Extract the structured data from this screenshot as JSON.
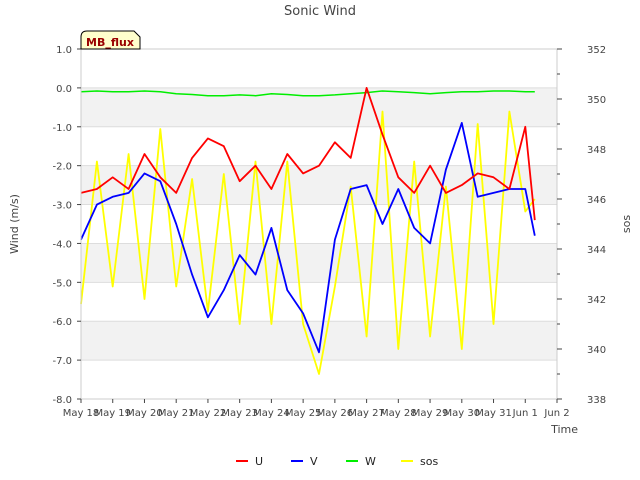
{
  "chart_data": {
    "type": "line",
    "title": "Sonic Wind",
    "xlabel": "Time",
    "ylabel": "Wind (m/s)",
    "y2label": "sos",
    "site_label": "MB_flux",
    "x_tick_labels": [
      "May 18",
      "May 19",
      "May 20",
      "May 21",
      "May 22",
      "May 23",
      "May 24",
      "May 25",
      "May 26",
      "May 27",
      "May 28",
      "May 29",
      "May 30",
      "May 31",
      "Jun 1",
      "Jun 2"
    ],
    "x_range_days": [
      0,
      15
    ],
    "ylim": [
      -8.0,
      1.0
    ],
    "y_ticks": [
      1.0,
      0.0,
      -1.0,
      -2.0,
      -3.0,
      -4.0,
      -5.0,
      -6.0,
      -7.0,
      -8.0
    ],
    "y_tick_labels": [
      "1.0",
      "0.0",
      "-1.0",
      "-2.0",
      "-3.0",
      "-4.0",
      "-5.0",
      "-6.0",
      "-7.0",
      "-8.0"
    ],
    "y2lim": [
      338,
      352
    ],
    "y2_ticks": [
      338,
      340,
      342,
      344,
      346,
      348,
      350,
      352
    ],
    "y2_tick_labels": [
      "338",
      "340",
      "342",
      "344",
      "346",
      "348",
      "350",
      "352"
    ],
    "legend_position": "bottom-center",
    "series": [
      {
        "name": "U",
        "color": "#ff0000",
        "axis": "left",
        "x": [
          0,
          0.5,
          1,
          1.5,
          2,
          2.5,
          3,
          3.5,
          4,
          4.5,
          5,
          5.5,
          6,
          6.5,
          7,
          7.5,
          8,
          8.5,
          9,
          9.5,
          10,
          10.5,
          11,
          11.5,
          12,
          12.5,
          13,
          13.5,
          14,
          14.3
        ],
        "values": [
          -2.7,
          -2.6,
          -2.3,
          -2.6,
          -1.7,
          -2.3,
          -2.7,
          -1.8,
          -1.3,
          -1.5,
          -2.4,
          -2.0,
          -2.6,
          -1.7,
          -2.2,
          -2.0,
          -1.4,
          -1.8,
          0.0,
          -1.2,
          -2.3,
          -2.7,
          -2.0,
          -2.7,
          -2.5,
          -2.2,
          -2.3,
          -2.6,
          -1.0,
          -3.4
        ]
      },
      {
        "name": "V",
        "color": "#0000ff",
        "axis": "left",
        "x": [
          0,
          0.5,
          1,
          1.5,
          2,
          2.5,
          3,
          3.5,
          4,
          4.5,
          5,
          5.5,
          6,
          6.5,
          7,
          7.5,
          8,
          8.5,
          9,
          9.5,
          10,
          10.5,
          11,
          11.5,
          12,
          12.5,
          13,
          13.5,
          14,
          14.3
        ],
        "values": [
          -3.9,
          -3.0,
          -2.8,
          -2.7,
          -2.2,
          -2.4,
          -3.5,
          -4.8,
          -5.9,
          -5.2,
          -4.3,
          -4.8,
          -3.6,
          -5.2,
          -5.8,
          -6.8,
          -3.9,
          -2.6,
          -2.5,
          -3.5,
          -2.6,
          -3.6,
          -4.0,
          -2.1,
          -0.9,
          -2.8,
          -2.7,
          -2.6,
          -2.6,
          -3.8
        ]
      },
      {
        "name": "W",
        "color": "#00ee00",
        "axis": "left",
        "x": [
          0,
          0.5,
          1,
          1.5,
          2,
          2.5,
          3,
          3.5,
          4,
          4.5,
          5,
          5.5,
          6,
          6.5,
          7,
          7.5,
          8,
          8.5,
          9,
          9.5,
          10,
          10.5,
          11,
          11.5,
          12,
          12.5,
          13,
          13.5,
          14,
          14.3
        ],
        "values": [
          -0.1,
          -0.08,
          -0.1,
          -0.1,
          -0.08,
          -0.1,
          -0.15,
          -0.17,
          -0.2,
          -0.2,
          -0.18,
          -0.2,
          -0.15,
          -0.17,
          -0.2,
          -0.2,
          -0.18,
          -0.15,
          -0.12,
          -0.08,
          -0.1,
          -0.12,
          -0.15,
          -0.12,
          -0.1,
          -0.1,
          -0.08,
          -0.08,
          -0.1,
          -0.1
        ]
      },
      {
        "name": "sos",
        "color": "#ffff00",
        "axis": "right",
        "x": [
          0,
          0.5,
          1,
          1.5,
          2,
          2.5,
          3,
          3.5,
          4,
          4.5,
          5,
          5.5,
          6,
          6.5,
          7,
          7.5,
          8,
          8.5,
          9,
          9.5,
          10,
          10.5,
          11,
          11.5,
          12,
          12.5,
          13,
          13.5,
          14,
          14.3
        ],
        "values": [
          341.8,
          347.5,
          342.5,
          347.8,
          342.0,
          348.8,
          342.5,
          346.8,
          341.5,
          347.0,
          341.0,
          347.5,
          341.0,
          347.5,
          341.0,
          339.0,
          342.5,
          346.5,
          340.5,
          349.5,
          340.0,
          347.5,
          340.5,
          346.5,
          340.0,
          349.0,
          341.0,
          349.5,
          345.5,
          346.0
        ]
      }
    ]
  }
}
